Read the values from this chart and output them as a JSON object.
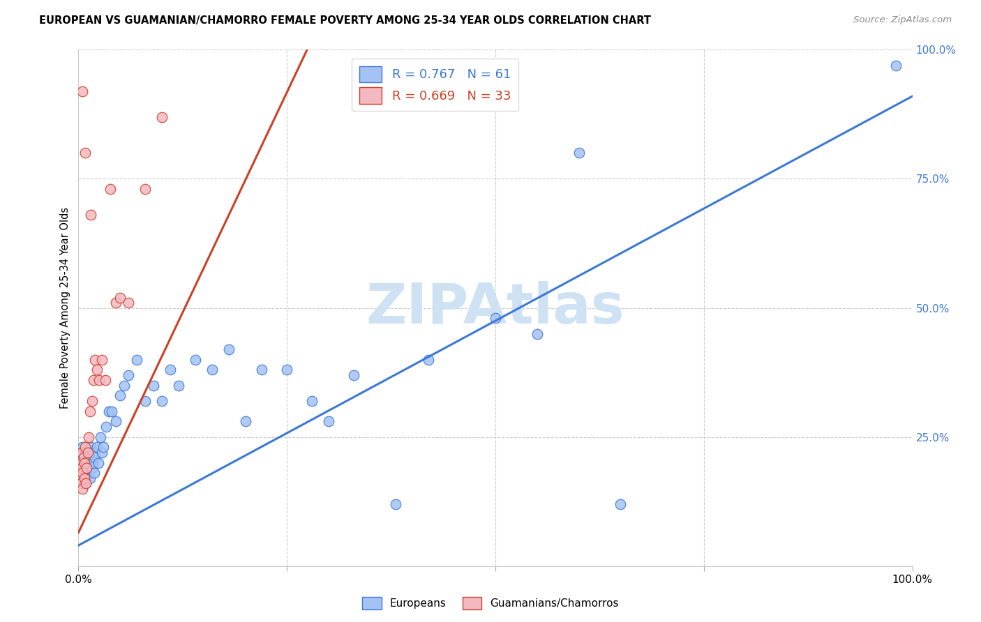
{
  "title": "EUROPEAN VS GUAMANIAN/CHAMORRO FEMALE POVERTY AMONG 25-34 YEAR OLDS CORRELATION CHART",
  "source": "Source: ZipAtlas.com",
  "ylabel": "Female Poverty Among 25-34 Year Olds",
  "xlim": [
    0,
    1.0
  ],
  "ylim": [
    0,
    1.0
  ],
  "xticklabels_show": [
    "0.0%",
    "100.0%"
  ],
  "xticklabels_pos": [
    0.0,
    1.0
  ],
  "ytick_right_labels": [
    "25.0%",
    "50.0%",
    "75.0%",
    "100.0%"
  ],
  "ytick_right_pos": [
    0.25,
    0.5,
    0.75,
    1.0
  ],
  "legend_label1": "Europeans",
  "legend_label2": "Guamanians/Chamorros",
  "R1": 0.767,
  "N1": 61,
  "R2": 0.669,
  "N2": 33,
  "color_blue": "#a4c2f4",
  "color_pink": "#f4b8c1",
  "edge_blue": "#3c78d8",
  "edge_pink": "#cc4125",
  "line_blue": "#3c78d8",
  "line_pink": "#cc4125",
  "watermark": "ZIPAtlas",
  "watermark_color": "#cfe2f3",
  "blue_line_x": [
    0.0,
    1.0
  ],
  "blue_line_y": [
    0.04,
    0.91
  ],
  "pink_line_x": [
    0.0,
    0.28
  ],
  "pink_line_y": [
    0.065,
    1.02
  ],
  "blue_x": [
    0.002,
    0.002,
    0.003,
    0.003,
    0.004,
    0.004,
    0.005,
    0.005,
    0.006,
    0.006,
    0.007,
    0.007,
    0.008,
    0.008,
    0.009,
    0.01,
    0.01,
    0.011,
    0.012,
    0.013,
    0.014,
    0.015,
    0.016,
    0.017,
    0.018,
    0.019,
    0.02,
    0.022,
    0.024,
    0.026,
    0.028,
    0.03,
    0.033,
    0.036,
    0.04,
    0.045,
    0.05,
    0.055,
    0.06,
    0.07,
    0.08,
    0.09,
    0.1,
    0.11,
    0.12,
    0.14,
    0.16,
    0.18,
    0.2,
    0.22,
    0.25,
    0.28,
    0.3,
    0.33,
    0.38,
    0.42,
    0.5,
    0.55,
    0.6,
    0.65,
    0.98
  ],
  "blue_y": [
    0.17,
    0.21,
    0.18,
    0.22,
    0.2,
    0.16,
    0.19,
    0.23,
    0.18,
    0.2,
    0.21,
    0.17,
    0.22,
    0.19,
    0.16,
    0.2,
    0.18,
    0.22,
    0.19,
    0.21,
    0.17,
    0.23,
    0.19,
    0.2,
    0.22,
    0.18,
    0.21,
    0.23,
    0.2,
    0.25,
    0.22,
    0.23,
    0.27,
    0.3,
    0.3,
    0.28,
    0.33,
    0.35,
    0.37,
    0.4,
    0.32,
    0.35,
    0.32,
    0.38,
    0.35,
    0.4,
    0.38,
    0.42,
    0.28,
    0.38,
    0.38,
    0.32,
    0.28,
    0.37,
    0.12,
    0.4,
    0.48,
    0.45,
    0.8,
    0.12,
    0.97
  ],
  "pink_x": [
    0.001,
    0.002,
    0.003,
    0.003,
    0.004,
    0.004,
    0.005,
    0.005,
    0.006,
    0.007,
    0.007,
    0.008,
    0.009,
    0.01,
    0.011,
    0.012,
    0.014,
    0.016,
    0.018,
    0.02,
    0.022,
    0.025,
    0.028,
    0.032,
    0.038,
    0.045,
    0.05,
    0.06,
    0.08,
    0.1,
    0.005,
    0.008,
    0.015
  ],
  "pink_y": [
    0.18,
    0.17,
    0.2,
    0.16,
    0.19,
    0.22,
    0.18,
    0.15,
    0.21,
    0.17,
    0.2,
    0.23,
    0.16,
    0.19,
    0.22,
    0.25,
    0.3,
    0.32,
    0.36,
    0.4,
    0.38,
    0.36,
    0.4,
    0.36,
    0.73,
    0.51,
    0.52,
    0.51,
    0.73,
    0.87,
    0.92,
    0.8,
    0.68
  ]
}
